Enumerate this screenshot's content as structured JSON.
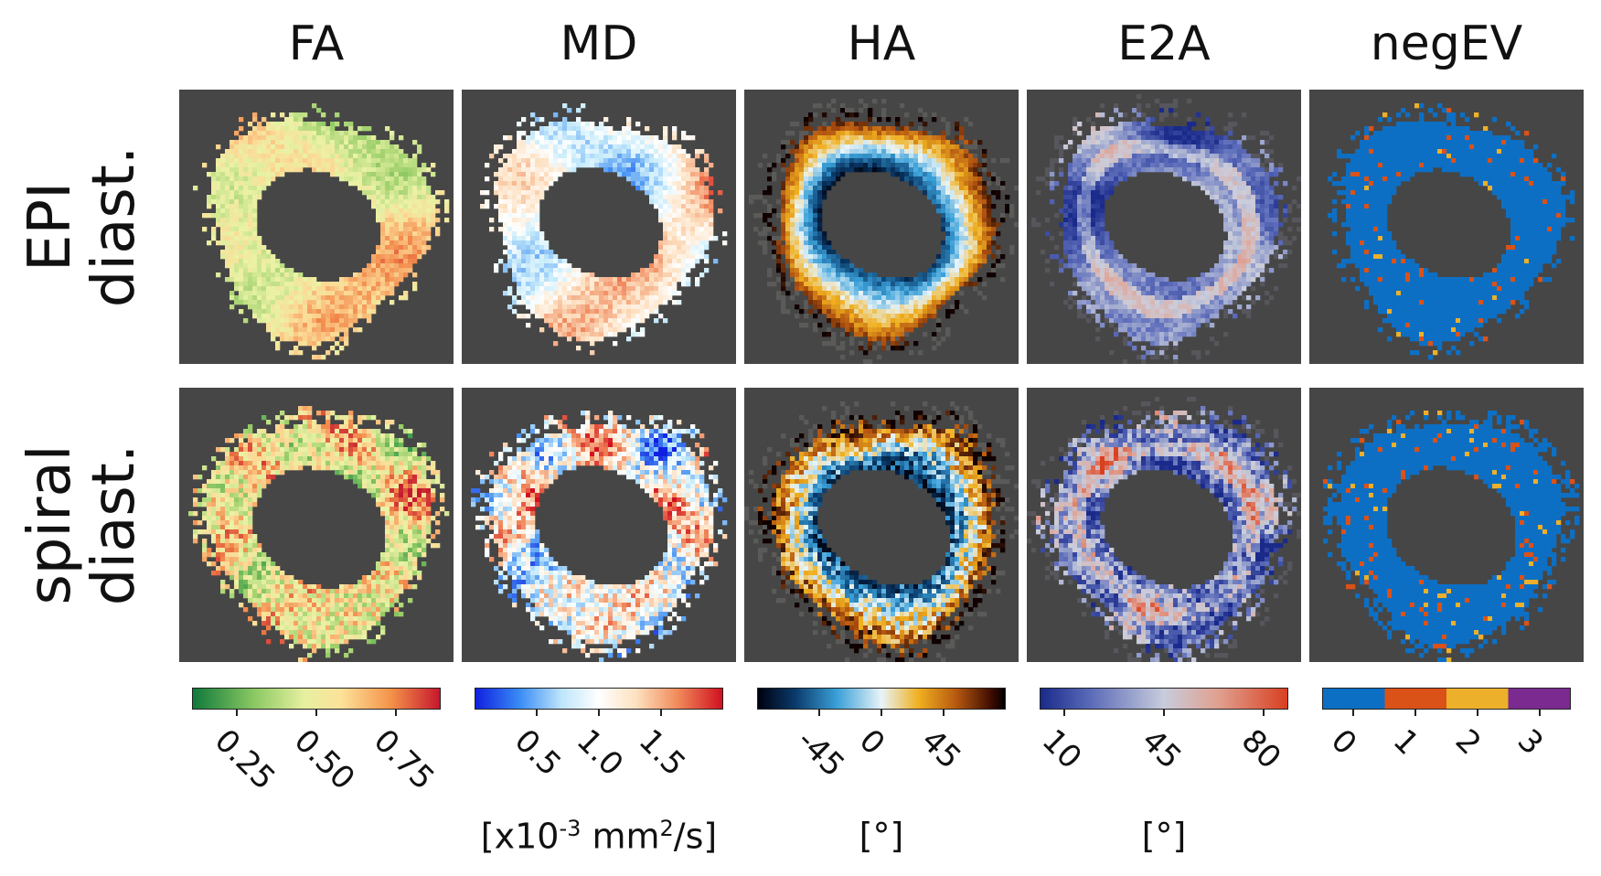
{
  "columns": [
    {
      "id": "fa",
      "title": "FA",
      "colorbar": "linear-gradient(to right,#0f7a3a 0%,#8cc963 25%,#e6f0a0 45%,#fde29a 60%,#f4944a 80%,#c6172d 100%)",
      "ticks": [
        {
          "label": "0.25",
          "frac": 0.18
        },
        {
          "label": "0.50",
          "frac": 0.5
        },
        {
          "label": "0.75",
          "frac": 0.82
        }
      ],
      "unit": ""
    },
    {
      "id": "md",
      "title": "MD",
      "colorbar": "linear-gradient(to right,#1020e0 0%,#3a8cf5 18%,#bfe6fb 35%,#ffffff 50%,#fde1c0 65%,#f08a5a 82%,#d01020 100%)",
      "ticks": [
        {
          "label": "0.5",
          "frac": 0.25
        },
        {
          "label": "1.0",
          "frac": 0.5
        },
        {
          "label": "1.5",
          "frac": 0.75
        }
      ],
      "unit": "[x10-3 mm2/s]"
    },
    {
      "id": "ha",
      "title": "HA",
      "colorbar": "linear-gradient(to right,#000010 0%,#0a3a6a 15%,#3aa0d8 32%,#e8f4f8 50%,#f0b020 65%,#b85a10 80%,#3a0a00 95%,#000000 100%)",
      "ticks": [
        {
          "label": "-45",
          "frac": 0.25
        },
        {
          "label": "0",
          "frac": 0.5
        },
        {
          "label": "45",
          "frac": 0.75
        }
      ],
      "unit": "[°]"
    },
    {
      "id": "e2a",
      "title": "E2A",
      "colorbar": "linear-gradient(to right,#1a2a8a 0%,#5a6ab8 20%,#c8ccdc 50%,#e0a090 72%,#d84020 100%)",
      "ticks": [
        {
          "label": "10",
          "frac": 0.1
        },
        {
          "label": "45",
          "frac": 0.5
        },
        {
          "label": "80",
          "frac": 0.9
        }
      ],
      "unit": "[°]"
    },
    {
      "id": "negev",
      "title": "negEV",
      "colorbar": "linear-gradient(to right,#0d6fc4 0%,#0d6fc4 25%,#da5218 25%,#da5218 50%,#ecb02a 50%,#ecb02a 75%,#7b2a90 75%,#7b2a90 100%)",
      "ticks": [
        {
          "label": "0",
          "frac": 0.125
        },
        {
          "label": "1",
          "frac": 0.375
        },
        {
          "label": "2",
          "frac": 0.625
        },
        {
          "label": "3",
          "frac": 0.875
        }
      ],
      "unit": ""
    }
  ],
  "rows": [
    {
      "id": "epi",
      "line1": "EPI",
      "line2": "diast."
    },
    {
      "id": "spiral",
      "line1": "spiral",
      "line2": "diast."
    }
  ],
  "colors": {
    "panel_bg": "#464646"
  }
}
